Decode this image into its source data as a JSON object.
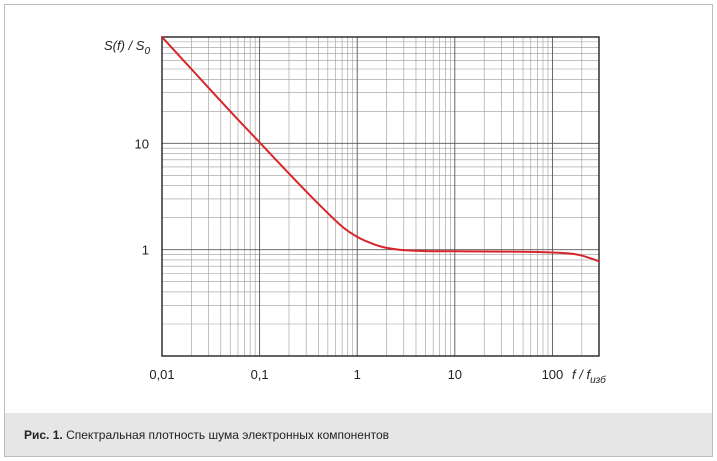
{
  "caption": {
    "label": "Рис. 1.",
    "text": "Спектральная плотность шума электронных компонентов"
  },
  "chart_data": {
    "type": "line",
    "xscale": "log",
    "yscale": "log",
    "xlim": [
      0.01,
      300
    ],
    "ylim": [
      0.1,
      100
    ],
    "grid": true,
    "xlabel": {
      "main": "f / f",
      "sub": "изб"
    },
    "ylabel": {
      "pre": "S(f) / S",
      "sub": "0"
    },
    "x_tick_values": [
      0.01,
      0.1,
      1,
      10,
      100
    ],
    "x_tick_labels": [
      "0,01",
      "0,1",
      "1",
      "10",
      "100"
    ],
    "y_tick_values": [
      1,
      10
    ],
    "y_tick_labels": [
      "1",
      "10"
    ],
    "line_color": "#d7262b",
    "series": [
      {
        "x": [
          0.01,
          0.02,
          0.05,
          0.1,
          0.2,
          0.4,
          0.7,
          1,
          1.5,
          2,
          3,
          5,
          10,
          20,
          50,
          100,
          150,
          200,
          300
        ],
        "y": [
          100,
          50,
          20,
          10.2,
          5.2,
          2.7,
          1.65,
          1.32,
          1.12,
          1.04,
          0.99,
          0.97,
          0.965,
          0.96,
          0.955,
          0.94,
          0.92,
          0.88,
          0.78
        ]
      }
    ]
  }
}
